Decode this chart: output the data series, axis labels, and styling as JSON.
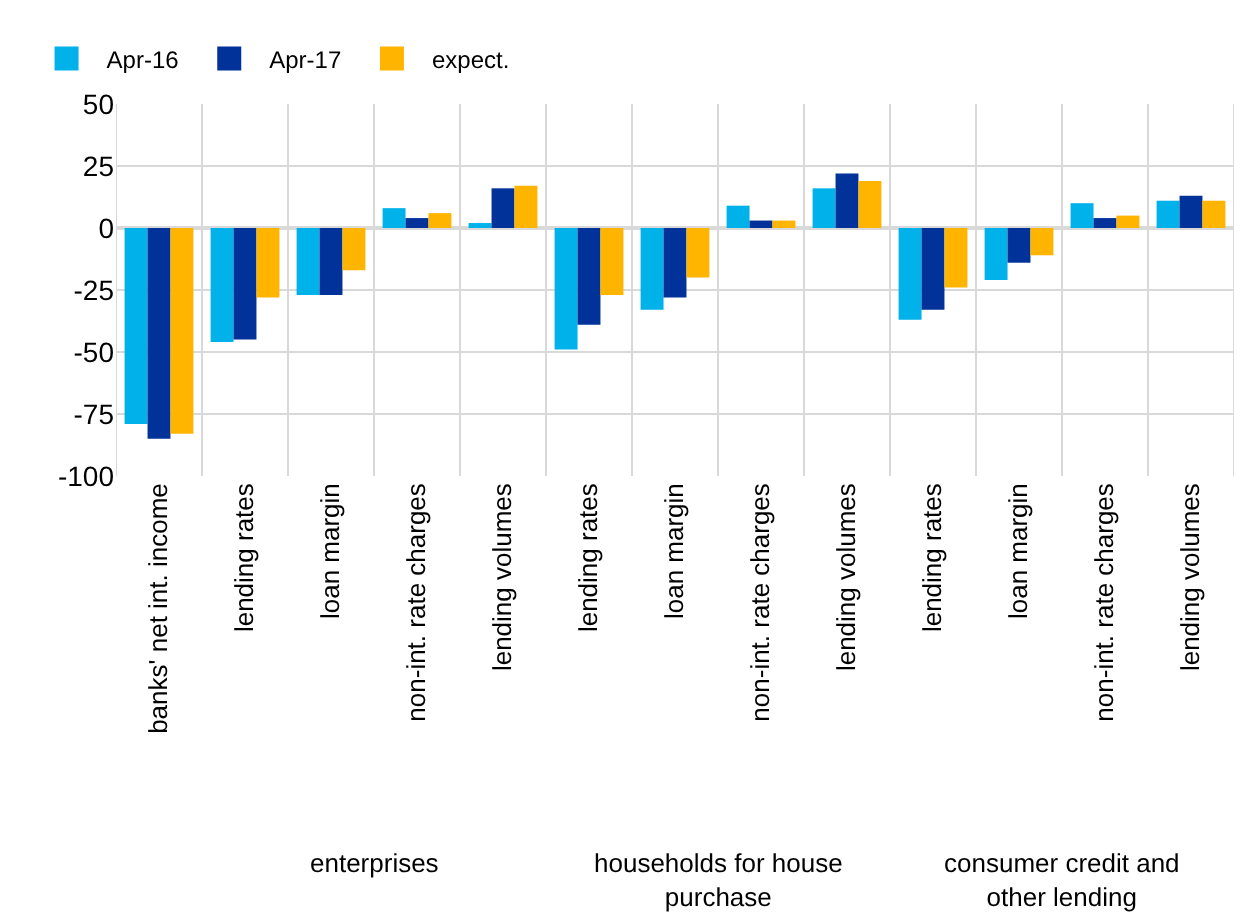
{
  "chart_data": {
    "type": "bar",
    "categories": [
      "banks' net int. income",
      "lending rates",
      "loan margin",
      "non-int. rate charges",
      "lending volumes",
      "lending rates",
      "loan margin",
      "non-int. rate charges",
      "lending volumes",
      "lending rates",
      "loan margin",
      "non-int. rate charges",
      "lending volumes"
    ],
    "series": [
      {
        "name": "Apr-16",
        "color": "#00b1ea",
        "values": [
          -79,
          -46,
          -27,
          8,
          2,
          -49,
          -33,
          9,
          16,
          -37,
          -21,
          10,
          11
        ]
      },
      {
        "name": "Apr-17",
        "color": "#003299",
        "values": [
          -85,
          -45,
          -27,
          4,
          16,
          -39,
          -28,
          3,
          22,
          -33,
          -14,
          4,
          13
        ]
      },
      {
        "name": "expect.",
        "color": "#ffb400",
        "values": [
          -83,
          -28,
          -17,
          6,
          17,
          -27,
          -20,
          3,
          19,
          -24,
          -11,
          5,
          11
        ]
      }
    ],
    "ylim": [
      -100,
      50
    ],
    "yticks": [
      -100,
      -75,
      -50,
      -25,
      0,
      25,
      50
    ],
    "annotations": [
      "enterprises",
      "households for house purchase",
      "consumer credit and other lending"
    ],
    "grid": true,
    "legend": "top left"
  }
}
